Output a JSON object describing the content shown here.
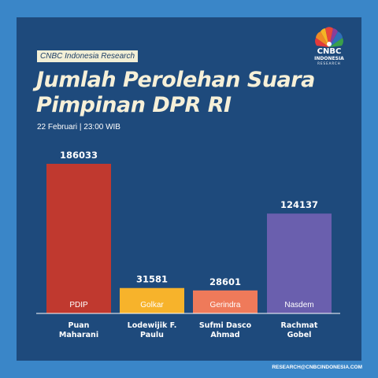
{
  "header": {
    "source_tag": "CNBC Indonesia Research",
    "title_line1": "Jumlah Perolehan Suara",
    "title_line2": "Pimpinan DPR RI",
    "date": "22 Februari | 23:00 WIB"
  },
  "logo": {
    "icon": "peacock-icon",
    "line1": "CNBC",
    "line2": "INDONESIA",
    "line3": "RESEARCH"
  },
  "footer": {
    "text": "RESEARCH@CNBCINDONESIA.COM"
  },
  "colors": {
    "background": "#3a86c8",
    "panel": "#1e4a7c",
    "title": "#f6f0d8",
    "axis": "#ffffff"
  },
  "chart_data": {
    "type": "bar",
    "categories": [
      {
        "name": "Puan",
        "name2": "Maharani",
        "party": "PDIP"
      },
      {
        "name": "Lodewijik F.",
        "name2": "Paulu",
        "party": "Golkar"
      },
      {
        "name": "Sufmi Dasco",
        "name2": "Ahmad",
        "party": "Gerindra"
      },
      {
        "name": "Rachmat",
        "name2": "Gobel",
        "party": "Nasdem"
      }
    ],
    "values": [
      186033,
      31581,
      28601,
      124137
    ],
    "value_labels": [
      "186033",
      "31581",
      "28601",
      "124137"
    ],
    "bar_colors": [
      "#c0392f",
      "#f7b32b",
      "#ef7a5a",
      "#6a5fae"
    ],
    "ylim": [
      0,
      186033
    ],
    "grid": false
  }
}
